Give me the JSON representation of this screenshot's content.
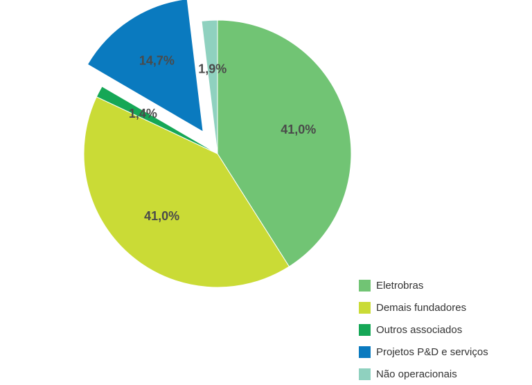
{
  "chart_data": {
    "type": "pie",
    "slices": [
      {
        "name": "Eletrobras",
        "value": 41.0,
        "label": "41,0%",
        "color": "#71c474",
        "exploded": false
      },
      {
        "name": "Demais fundadores",
        "value": 41.0,
        "label": "41,0%",
        "color": "#cadb36",
        "exploded": false
      },
      {
        "name": "Outros associados",
        "value": 1.4,
        "label": "1,4%",
        "color": "#15a756",
        "exploded": false
      },
      {
        "name": "Projetos P&D e serviços",
        "value": 14.7,
        "label": "14,7%",
        "color": "#0a7abf",
        "exploded": true
      },
      {
        "name": "Não operacionais",
        "value": 1.9,
        "label": "1,9%",
        "color": "#8fd1bf",
        "exploded": false
      }
    ],
    "legend_position": "bottom-right"
  }
}
